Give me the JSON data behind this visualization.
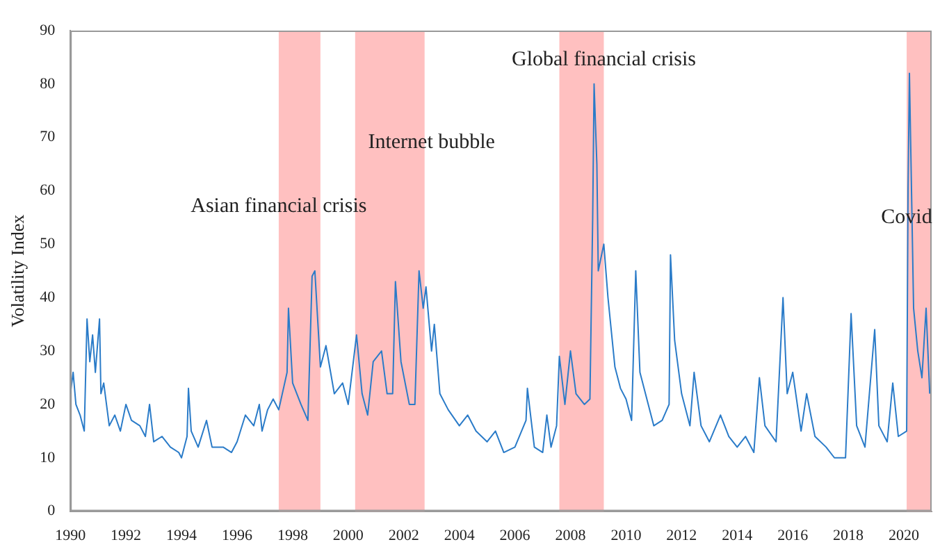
{
  "chart_data": {
    "type": "line",
    "ylabel": "Volatility Index",
    "x": [
      1990.0,
      1990.1,
      1990.2,
      1990.35,
      1990.5,
      1990.6,
      1990.7,
      1990.8,
      1990.9,
      1991.05,
      1991.1,
      1991.2,
      1991.4,
      1991.6,
      1991.8,
      1992.0,
      1992.2,
      1992.5,
      1992.7,
      1992.85,
      1993.0,
      1993.3,
      1993.6,
      1993.9,
      1994.0,
      1994.2,
      1994.25,
      1994.35,
      1994.6,
      1994.9,
      1995.1,
      1995.5,
      1995.8,
      1996.0,
      1996.3,
      1996.6,
      1996.8,
      1996.9,
      1997.1,
      1997.3,
      1997.5,
      1997.8,
      1997.85,
      1998.0,
      1998.3,
      1998.55,
      1998.7,
      1998.8,
      1999.0,
      1999.2,
      1999.5,
      1999.8,
      2000.0,
      2000.3,
      2000.5,
      2000.7,
      2000.9,
      2001.2,
      2001.4,
      2001.6,
      2001.7,
      2001.9,
      2002.2,
      2002.4,
      2002.55,
      2002.7,
      2002.8,
      2003.0,
      2003.1,
      2003.3,
      2003.6,
      2004.0,
      2004.3,
      2004.6,
      2005.0,
      2005.3,
      2005.6,
      2006.0,
      2006.4,
      2006.45,
      2006.7,
      2007.0,
      2007.15,
      2007.3,
      2007.5,
      2007.6,
      2007.8,
      2008.0,
      2008.2,
      2008.5,
      2008.7,
      2008.8,
      2008.85,
      2008.95,
      2009.0,
      2009.2,
      2009.35,
      2009.6,
      2009.8,
      2010.0,
      2010.2,
      2010.35,
      2010.5,
      2010.8,
      2011.0,
      2011.3,
      2011.55,
      2011.6,
      2011.75,
      2012.0,
      2012.3,
      2012.45,
      2012.7,
      2013.0,
      2013.4,
      2013.7,
      2014.0,
      2014.3,
      2014.6,
      2014.8,
      2015.0,
      2015.4,
      2015.65,
      2015.8,
      2016.0,
      2016.3,
      2016.5,
      2016.8,
      2017.2,
      2017.5,
      2017.9,
      2018.1,
      2018.3,
      2018.6,
      2018.95,
      2019.1,
      2019.4,
      2019.6,
      2019.8,
      2020.1,
      2020.15,
      2020.2,
      2020.35,
      2020.5,
      2020.65,
      2020.8,
      2020.93
    ],
    "series": [
      {
        "color": "#2a7bc8",
        "values": [
          22,
          26,
          20,
          18,
          15,
          36,
          28,
          33,
          26,
          36,
          22,
          24,
          16,
          18,
          15,
          20,
          17,
          16,
          14,
          20,
          13,
          14,
          12,
          11,
          10,
          14,
          23,
          15,
          12,
          17,
          12,
          12,
          11,
          13,
          18,
          16,
          20,
          15,
          19,
          21,
          19,
          26,
          38,
          24,
          20,
          17,
          44,
          45,
          27,
          31,
          22,
          24,
          20,
          33,
          22,
          18,
          28,
          30,
          22,
          22,
          43,
          28,
          20,
          20,
          45,
          38,
          42,
          30,
          35,
          22,
          19,
          16,
          18,
          15,
          13,
          15,
          11,
          12,
          17,
          23,
          12,
          11,
          18,
          12,
          16,
          29,
          20,
          30,
          22,
          20,
          21,
          55,
          80,
          65,
          45,
          50,
          40,
          27,
          23,
          21,
          17,
          45,
          26,
          20,
          16,
          17,
          20,
          48,
          32,
          22,
          16,
          26,
          16,
          13,
          18,
          14,
          12,
          14,
          11,
          25,
          16,
          13,
          40,
          22,
          26,
          15,
          22,
          14,
          12,
          10,
          10,
          37,
          16,
          12,
          34,
          16,
          13,
          24,
          14,
          15,
          60,
          82,
          38,
          30,
          25,
          38,
          22
        ]
      }
    ],
    "xlim": [
      1990,
      2021
    ],
    "xticks": [
      1990,
      1992,
      1994,
      1996,
      1998,
      2000,
      2002,
      2004,
      2006,
      2008,
      2010,
      2012,
      2014,
      2016,
      2018,
      2020
    ],
    "ylim": [
      0,
      90
    ],
    "yticks": [
      0,
      10,
      20,
      30,
      40,
      50,
      60,
      70,
      80,
      90
    ],
    "grid": false,
    "legend": false,
    "marker": "none",
    "line_style": "solid",
    "bands": [
      {
        "axis": "x",
        "from": 1997.5,
        "to": 1999.0,
        "color": "#ffc0c0"
      },
      {
        "axis": "x",
        "from": 2000.25,
        "to": 2002.75,
        "color": "#ffc0c0"
      },
      {
        "axis": "x",
        "from": 2007.6,
        "to": 2009.2,
        "color": "#ffc0c0"
      },
      {
        "axis": "x",
        "from": 2020.1,
        "to": 2021,
        "color": "#ffc0c0"
      }
    ],
    "annotations": [
      {
        "text": "Asian financial crisis",
        "x": 1997.5,
        "y": 57
      },
      {
        "text": "Internet bubble",
        "x": 2003.0,
        "y": 69
      },
      {
        "text": "Global financial crisis",
        "x": 2009.2,
        "y": 84.5
      },
      {
        "text": "Covid",
        "x": 2020.1,
        "y": 55
      }
    ]
  }
}
